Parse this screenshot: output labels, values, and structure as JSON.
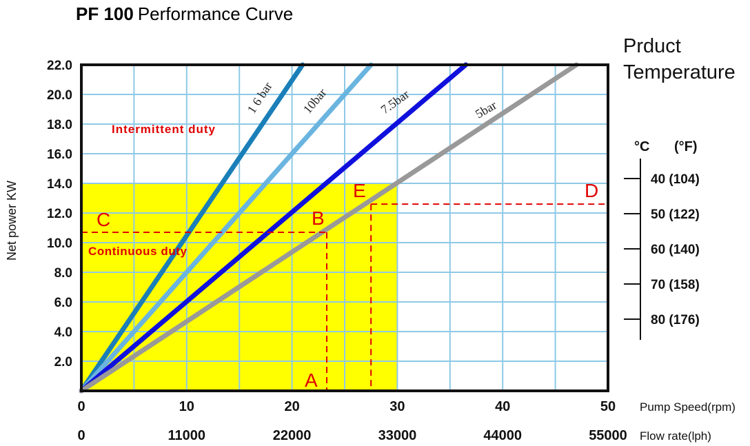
{
  "title_bold": "PF 100",
  "title_rest": "Performance Curve",
  "chart_data": {
    "type": "line",
    "xlabel_rpm": "Pump Speed(rpm)",
    "xlabel_flow": "Flow rate(lph)",
    "ylabel": "Net power KW",
    "xlim": [
      0,
      50
    ],
    "ylim": [
      0,
      22
    ],
    "y_ticks": [
      "2.0",
      "4.0",
      "6.0",
      "8.0",
      "10.0",
      "12.0",
      "14.0",
      "16.0",
      "18.0",
      "20.0",
      "22.0"
    ],
    "x_ticks_rpm": [
      "0",
      "10",
      "20",
      "30",
      "40",
      "50"
    ],
    "x_ticks_flow": [
      "0",
      "11000",
      "22000",
      "33000",
      "44000",
      "55000"
    ],
    "grid": true,
    "series": [
      {
        "name": "1 6 bar",
        "color": "#1a7fb8",
        "x": [
          0,
          21
        ],
        "y": [
          0,
          22
        ]
      },
      {
        "name": "10bar",
        "color": "#6ab4e0",
        "x": [
          0,
          27.5
        ],
        "y": [
          0,
          22
        ]
      },
      {
        "name": "7.5bar",
        "color": "#1010dd",
        "x": [
          0,
          36.5
        ],
        "y": [
          0,
          22
        ]
      },
      {
        "name": "5bar",
        "color": "#999999",
        "x": [
          0,
          47
        ],
        "y": [
          0,
          22
        ]
      }
    ],
    "regions": {
      "continuous": {
        "label": "Continuous duty",
        "x": [
          0,
          30
        ],
        "y": [
          0,
          14
        ],
        "color": "#ffff00"
      },
      "intermittent": {
        "label": "Intermittent duty"
      }
    },
    "guides": {
      "A": {
        "label": "A",
        "x": 23.3
      },
      "B": {
        "label": "B",
        "x": 23.3,
        "y": 10.7
      },
      "C": {
        "label": "C",
        "y": 10.7
      },
      "D": {
        "label": "D",
        "y": 12.6
      },
      "E": {
        "label": "E",
        "x": 27.5,
        "y": 12.6
      }
    }
  },
  "temperature": {
    "heading_line1": "Prduct",
    "heading_line2": "Temperature",
    "unit_c": "°C",
    "unit_f": "(°F)",
    "items": [
      "40 (104)",
      "50 (122)",
      "60 (140)",
      "70 (158)",
      "80 (176)"
    ]
  }
}
